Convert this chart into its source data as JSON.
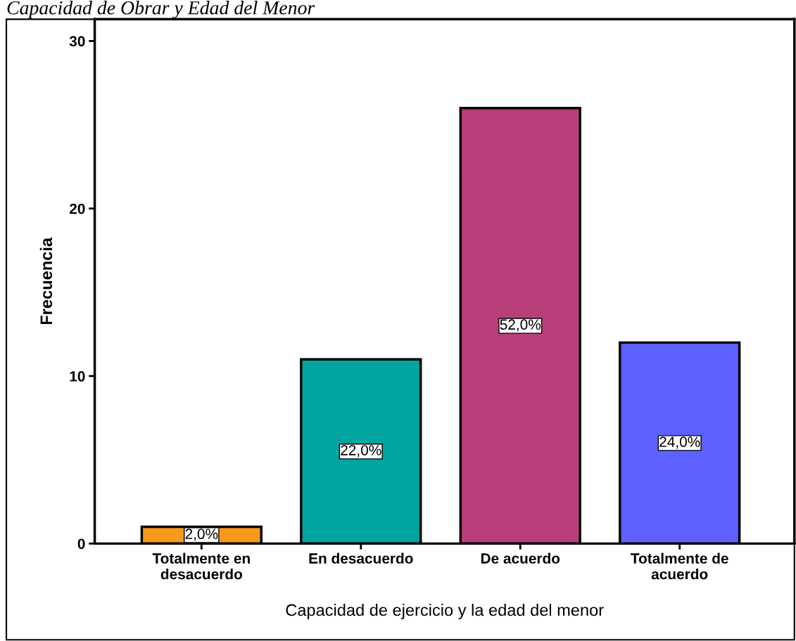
{
  "chart_data": {
    "type": "bar",
    "title": "Capacidad de Obrar y Edad del Menor",
    "xlabel": "Capacidad de ejercicio y la edad del menor",
    "ylabel": "Frecuencia",
    "categories": [
      "Totalmente en\ndesacuerdo",
      "En desacuerdo",
      "De acuerdo",
      "Totalmente de\nacuerdo"
    ],
    "values": [
      1,
      11,
      26,
      12
    ],
    "colors": [
      "#f7991c",
      "#00a5a0",
      "#b93f7b",
      "#5e61ff"
    ],
    "annotations": [
      "2,0%",
      "22,0%",
      "52,0%",
      "24,0%"
    ],
    "ylim": [
      0,
      31.3
    ],
    "yticks": [
      0,
      10,
      20,
      30
    ],
    "grid": false,
    "legend": false
  }
}
